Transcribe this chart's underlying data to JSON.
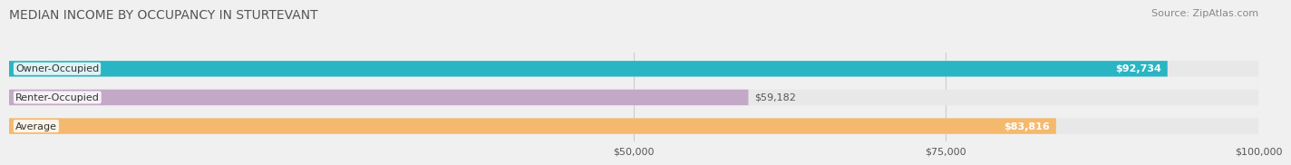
{
  "title": "MEDIAN INCOME BY OCCUPANCY IN STURTEVANT",
  "source": "Source: ZipAtlas.com",
  "categories": [
    "Owner-Occupied",
    "Renter-Occupied",
    "Average"
  ],
  "values": [
    92734,
    59182,
    83816
  ],
  "colors": [
    "#29b5c3",
    "#c4a8c8",
    "#f5b96e"
  ],
  "bar_labels": [
    "$92,734",
    "$59,182",
    "$83,816"
  ],
  "label_inside": [
    true,
    false,
    true
  ],
  "xmax": 100000,
  "xmin": 0,
  "xticks": [
    50000,
    75000,
    100000
  ],
  "xtick_labels": [
    "$50,000",
    "$75,000",
    "$100,000"
  ],
  "bg_color": "#f0f0f0",
  "bar_bg_color": "#e8e8e8",
  "title_color": "#555555",
  "source_color": "#888888",
  "label_color_inside": "#ffffff",
  "label_color_outside": "#555555",
  "bar_height": 0.55,
  "fig_width": 14.06,
  "fig_height": 1.96
}
